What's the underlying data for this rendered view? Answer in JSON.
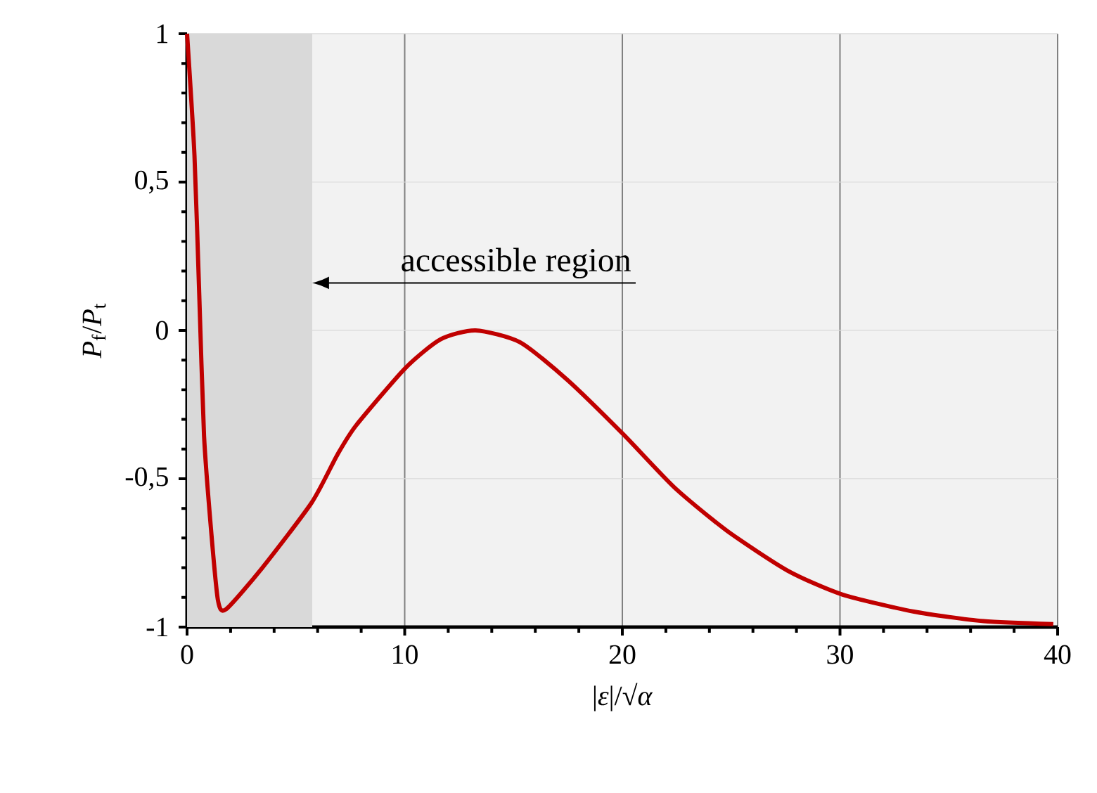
{
  "chart_data": {
    "type": "line",
    "xlabel": "|*ε*|/√*α*",
    "ylabel": "*P*$_{f}$/*P*$_{t}$",
    "series": [
      {
        "color": "#c00000",
        "x": [
          0,
          0.34,
          0.56,
          0.78,
          1.1,
          1.42,
          1.79,
          3.46,
          5.73,
          6.9,
          7.77,
          10.03,
          11.65,
          13.26,
          15.3,
          17.46,
          20.04,
          22.4,
          24.8,
          27.6,
          30.1,
          33.4,
          36.6,
          39.8
        ],
        "values": [
          1,
          0.59,
          0.12,
          -0.355,
          -0.67,
          -0.91,
          -0.94,
          -0.8,
          -0.58,
          -0.42,
          -0.32,
          -0.127,
          -0.03,
          0,
          -0.04,
          -0.166,
          -0.35,
          -0.53,
          -0.675,
          -0.81,
          -0.89,
          -0.948,
          -0.98,
          -0.99
        ]
      }
    ],
    "xlim": [
      0,
      40
    ],
    "ylim": [
      -1,
      1
    ],
    "xticks": [
      0,
      10,
      20,
      30,
      40
    ],
    "yticks": [
      {
        "value": -1,
        "label": "-1"
      },
      {
        "value": -0.5,
        "label": "-0,5"
      },
      {
        "value": 0,
        "label": "0"
      },
      {
        "value": 0.5,
        "label": "0,5"
      },
      {
        "value": 1,
        "label": "1"
      }
    ],
    "grid": true,
    "bands": [
      {
        "axis": "x",
        "from": 0,
        "to": 5.75,
        "color": "#d9d9d9"
      }
    ],
    "annotations": [
      {
        "text": "accessible region",
        "x": 5.75,
        "y": 0.16
      }
    ]
  }
}
